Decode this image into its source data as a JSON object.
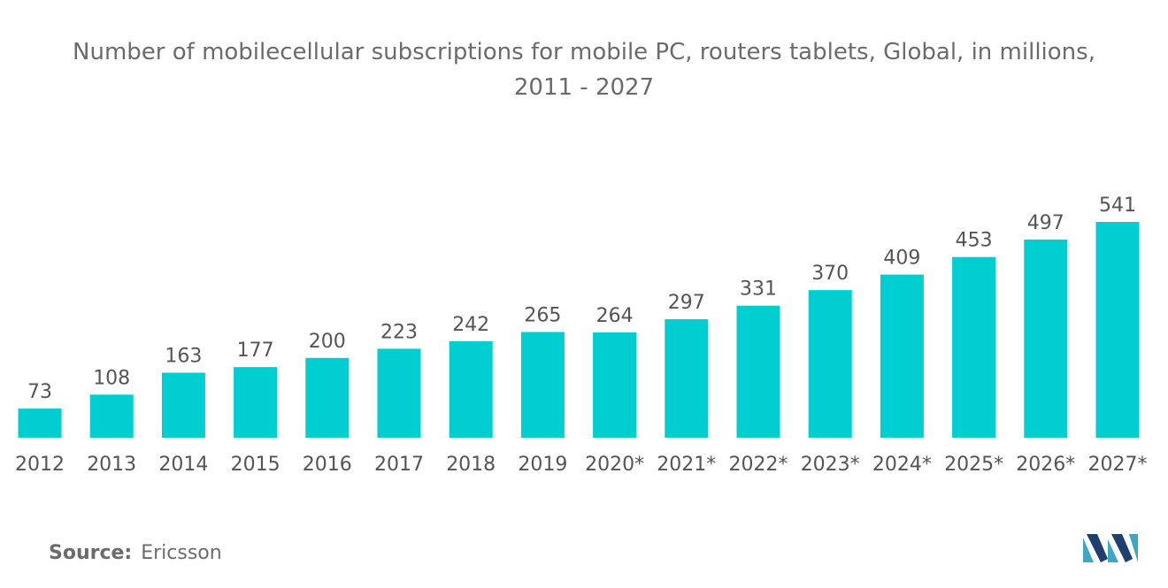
{
  "title": {
    "line1": "Number of mobilecellular subscriptions for mobile PC, routers tablets, Global, in millions,",
    "line2": "2011 - 2027"
  },
  "source": {
    "label": "Source:",
    "value": "Ericsson"
  },
  "colors": {
    "bar": "#00CED1",
    "text": "#555555",
    "title": "#6b6b6b",
    "logo_dark": "#1f3f6e",
    "logo_light": "#3ea7c4"
  },
  "chart_data": {
    "type": "bar",
    "title": "Number of mobilecellular subscriptions for mobile PC, routers tablets, Global, in millions, 2011 - 2027",
    "xlabel": "",
    "ylabel": "",
    "categories": [
      "2012",
      "2013",
      "2014",
      "2015",
      "2016",
      "2017",
      "2018",
      "2019",
      "2020*",
      "2021*",
      "2022*",
      "2023*",
      "2024*",
      "2025*",
      "2026*",
      "2027*"
    ],
    "values": [
      73,
      108,
      163,
      177,
      200,
      223,
      242,
      265,
      264,
      297,
      331,
      370,
      409,
      453,
      497,
      541
    ],
    "ylim": [
      0,
      541
    ],
    "grid": false,
    "legend": "none"
  }
}
